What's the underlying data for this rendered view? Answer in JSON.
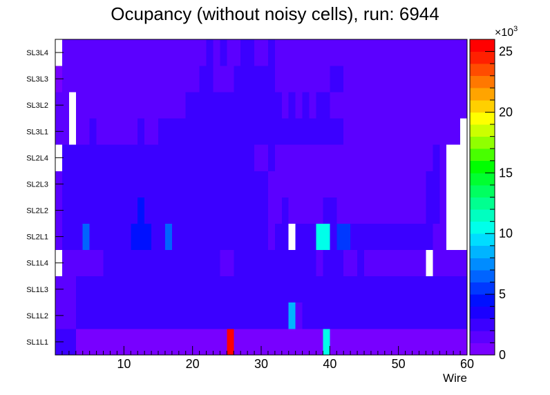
{
  "chart_data": {
    "type": "heatmap",
    "title": "Ocupancy (without noisy cells), run: 6944",
    "xlabel": "Wire",
    "ylabel": "",
    "x_range": [
      0,
      60
    ],
    "x_ticks": [
      "10",
      "20",
      "30",
      "40",
      "50",
      "60"
    ],
    "y_categories": [
      "SL1L1",
      "SL1L2",
      "SL1L3",
      "SL1L4",
      "SL2L1",
      "SL2L2",
      "SL2L3",
      "SL2L4",
      "SL3L1",
      "SL3L2",
      "SL3L3",
      "SL3L4"
    ],
    "z_range": [
      0,
      26000
    ],
    "z_exponent_label": "×10",
    "z_exponent_power": "3",
    "z_ticks": [
      "0",
      "5",
      "10",
      "15",
      "20",
      "25"
    ],
    "palette": [
      "#7800ff",
      "#5b00ff",
      "#3b00ff",
      "#1a00ff",
      "#0010ff",
      "#0038ff",
      "#0064ff",
      "#008cff",
      "#00b4ff",
      "#00ddff",
      "#00ffea",
      "#00ffc0",
      "#00ff90",
      "#00ff60",
      "#00ff30",
      "#00ff00",
      "#48ff00",
      "#90ff00",
      "#ccff00",
      "#ffff00",
      "#ffd000",
      "#ffa400",
      "#ff7800",
      "#ff4c00",
      "#ff2000",
      "#ff0000"
    ],
    "rows": [
      "CCCAAAAAAAAAAAAAAAAAAAAAAZAAAAAAAAAAAAAKAAAAAAAAAAAAAAAAAAAA",
      "BBBCCCCCCCCCCCCCCCCCCCCCCCCCCCCCCCIBCCCCCCCCCCCCCCCCCCCCCCCC",
      "BBBCCCCCCCCCCCCCCCCCCCCCCCCCCCCCCCCCCCCCCCCCCCCCCCCCCCCCCCCC",
      "WBBBBBBCCCCCCCCCCCCCCCCCBBCCCCCCCCCCCCBCCCBBCBBBBBBBBBWBBBBB",
      "BCCCGCCCCCCEEECCGCCCCCCCCCCCCCCBCCWCCCKKCFFCCCCCCCCCCCCBBWWW",
      "BCCCCCCCCCCCECCCCCCCCCCCCCCCCCCBBCBBBBBCCBBBBBBBBBBBBBCCBWWW",
      "BCCCCCCCCCCCCCCCCCCCCCCCCCCCCCCBBBBBBBBBBBBBBBBBBBBBBBCCBWWW",
      "WCCCCCCCCCCCCCCCCCCCCCCCCCCCCBBCBBBBBBBBBBBBBBBBBBBBBBBCBWWW",
      "BBWBBCBBBBBBCBBCCCCCCCCCCCCCCCCCCCCCCCCCCCBBBBBBBBBBBBBBBBBW",
      "BBWBBBBBBBBBBBBBBBBCCCCCCCCCCCCCCBCBCBCCBBBBBBBBBBBBBBBBBBBB",
      "ABBBBBBBBBBBBBBBBBBBBCCBBBCCCCCCBBBBBBBBCCBBBBBBBBBBBBBBBBBB",
      "WBBBBBBBBBBBBBBBBBBBBBCBCBBCCBBCBBBBBBBBBBBBBBBBBBBBBBBBBBBB"
    ]
  }
}
